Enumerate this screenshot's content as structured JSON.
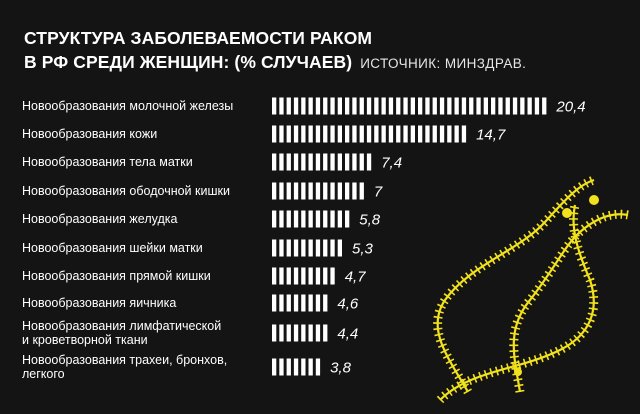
{
  "title": {
    "line1": "СТРУКТУРА ЗАБОЛЕВАЕМОСТИ РАКОМ",
    "line2": "В РФ СРЕДИ ЖЕНЩИН: (% СЛУЧАЕВ)",
    "source": "ИСТОЧНИК: МИНЗДРАВ."
  },
  "colors": {
    "background": "#141414",
    "bar": "#ffffff",
    "text": "#ffffff",
    "ribbon": "#f2e21e"
  },
  "decoration": {
    "icon": "awareness-ribbon-icon"
  },
  "chart_data": {
    "type": "bar",
    "orientation": "horizontal",
    "style": "segmented",
    "categories": [
      [
        "Новообразования молочной железы"
      ],
      [
        "Новообразования кожи"
      ],
      [
        "Новообразования тела матки"
      ],
      [
        "Новообразования ободочной кишки"
      ],
      [
        "Новообразования желудка"
      ],
      [
        "Новообразования шейки матки"
      ],
      [
        "Новообразования прямой кишки"
      ],
      [
        "Новообразования яичника"
      ],
      [
        "Новообразования лимфатической",
        "и кроветворной ткани"
      ],
      [
        "Новообразования трахеи, бронхов,",
        "легкого"
      ]
    ],
    "values": [
      20.4,
      14.7,
      7.4,
      7,
      5.8,
      5.3,
      4.7,
      4.6,
      4.4,
      3.8
    ],
    "value_labels": [
      "20,4",
      "14,7",
      "7,4",
      "7",
      "5,8",
      "5,3",
      "4,7",
      "4,6",
      "4,4",
      "3,8"
    ],
    "xlim": [
      0,
      20.4
    ]
  }
}
